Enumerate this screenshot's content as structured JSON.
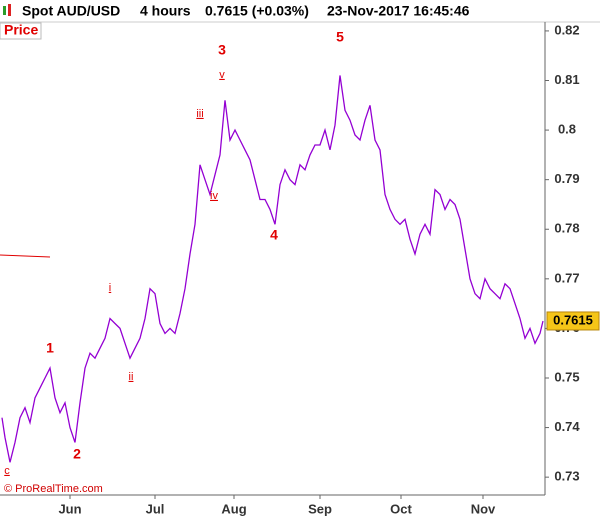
{
  "chart_data": {
    "type": "line",
    "title": "Spot AUD/USD",
    "timeframe": "4 hours",
    "quote": "0.7615 (+0.03%)",
    "timestamp": "23-Nov-2017 16:45:46",
    "panel_label": "Price",
    "copyright": "© ProRealTime.com",
    "last_value": 0.7615,
    "x": [
      2,
      5,
      10,
      15,
      20,
      25,
      30,
      35,
      40,
      45,
      50,
      55,
      60,
      65,
      70,
      75,
      80,
      85,
      90,
      95,
      100,
      105,
      110,
      115,
      120,
      125,
      130,
      135,
      140,
      145,
      150,
      155,
      160,
      165,
      170,
      175,
      180,
      185,
      190,
      195,
      200,
      205,
      210,
      215,
      220,
      225,
      230,
      235,
      240,
      245,
      250,
      255,
      260,
      265,
      270,
      275,
      280,
      285,
      290,
      295,
      300,
      305,
      310,
      315,
      320,
      325,
      330,
      335,
      340,
      345,
      350,
      355,
      360,
      365,
      370,
      375,
      380,
      385,
      390,
      395,
      400,
      405,
      410,
      415,
      420,
      425,
      430,
      435,
      440,
      445,
      450,
      455,
      460,
      465,
      470,
      475,
      480,
      485,
      490,
      495,
      500,
      505,
      510,
      515,
      520,
      525,
      530,
      535,
      540,
      543
    ],
    "series": [
      {
        "name": "AUD/USD",
        "color": "#9400d3",
        "values": [
          0.742,
          0.738,
          0.733,
          0.737,
          0.742,
          0.744,
          0.741,
          0.746,
          0.748,
          0.75,
          0.752,
          0.746,
          0.743,
          0.745,
          0.74,
          0.737,
          0.745,
          0.752,
          0.755,
          0.754,
          0.756,
          0.758,
          0.762,
          0.761,
          0.76,
          0.757,
          0.754,
          0.756,
          0.758,
          0.762,
          0.768,
          0.767,
          0.761,
          0.759,
          0.76,
          0.759,
          0.763,
          0.768,
          0.775,
          0.781,
          0.793,
          0.79,
          0.787,
          0.791,
          0.795,
          0.806,
          0.798,
          0.8,
          0.798,
          0.796,
          0.794,
          0.79,
          0.786,
          0.786,
          0.784,
          0.781,
          0.789,
          0.792,
          0.79,
          0.789,
          0.793,
          0.792,
          0.795,
          0.797,
          0.797,
          0.8,
          0.796,
          0.801,
          0.811,
          0.804,
          0.802,
          0.799,
          0.798,
          0.802,
          0.805,
          0.798,
          0.796,
          0.787,
          0.784,
          0.782,
          0.781,
          0.782,
          0.778,
          0.775,
          0.779,
          0.781,
          0.779,
          0.788,
          0.787,
          0.784,
          0.786,
          0.785,
          0.782,
          0.776,
          0.77,
          0.767,
          0.766,
          0.77,
          0.768,
          0.767,
          0.766,
          0.769,
          0.768,
          0.765,
          0.762,
          0.758,
          0.76,
          0.757,
          0.759,
          0.7615
        ]
      }
    ],
    "xlim": [
      0,
      545
    ],
    "xticks": [
      {
        "value": 70,
        "label": "Jun"
      },
      {
        "value": 155,
        "label": "Jul"
      },
      {
        "value": 234,
        "label": "Aug"
      },
      {
        "value": 320,
        "label": "Sep"
      },
      {
        "value": 401,
        "label": "Oct"
      },
      {
        "value": 483,
        "label": "Nov"
      }
    ],
    "ylim": [
      0.7264,
      0.8218
    ],
    "yticks": [
      0.73,
      0.74,
      0.75,
      0.76,
      0.77,
      0.78,
      0.79,
      0.8,
      0.81,
      0.82
    ],
    "annotations": [
      "1",
      "2",
      "3",
      "4",
      "5",
      "i",
      "ii",
      "iii",
      "iv",
      "v",
      "c"
    ]
  }
}
